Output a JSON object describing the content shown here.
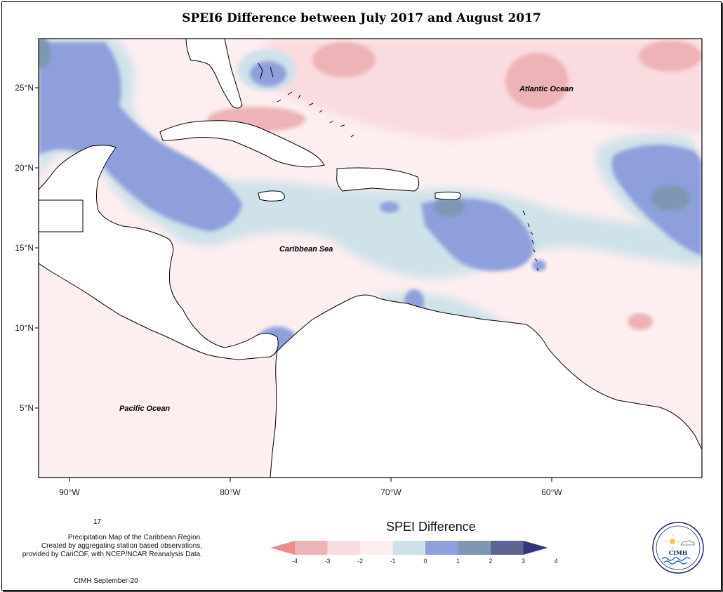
{
  "title": "SPEI6 Difference between July 2017 and August 2017",
  "axes": {
    "lat_ticks": [
      "25°N",
      "20°N",
      "15°N",
      "10°N",
      "5°N"
    ],
    "lon_ticks": [
      "90°W",
      "80°W",
      "70°W",
      "60°W"
    ]
  },
  "labels": {
    "atlantic": "Atlantic Ocean",
    "caribbean": "Caribbean Sea",
    "pacific": "Pacific Ocean"
  },
  "caption": {
    "number": "17",
    "line1": "Precipitation Map of the Caribbean Region.",
    "line2": "Created by aggregating station based observations,",
    "line3": "provided by CariCOF, with NCEP/NCAR Reanalysis Data.",
    "credit": "CIMH September-20"
  },
  "legend": {
    "title": "SPEI Difference",
    "ticks": [
      "-4",
      "-3",
      "-2",
      "-1",
      "0",
      "1",
      "2",
      "3",
      "4"
    ],
    "colors": [
      "#f08a8e",
      "#edb3b6",
      "#fadbe0",
      "#fdeef0",
      "#cfe2ea",
      "#8e9fdc",
      "#7e97b4",
      "#5d6491",
      "#36337a"
    ]
  },
  "logo": {
    "name": "CIMH"
  },
  "colors": {
    "land": "#ffffff",
    "coast": "#000000"
  }
}
